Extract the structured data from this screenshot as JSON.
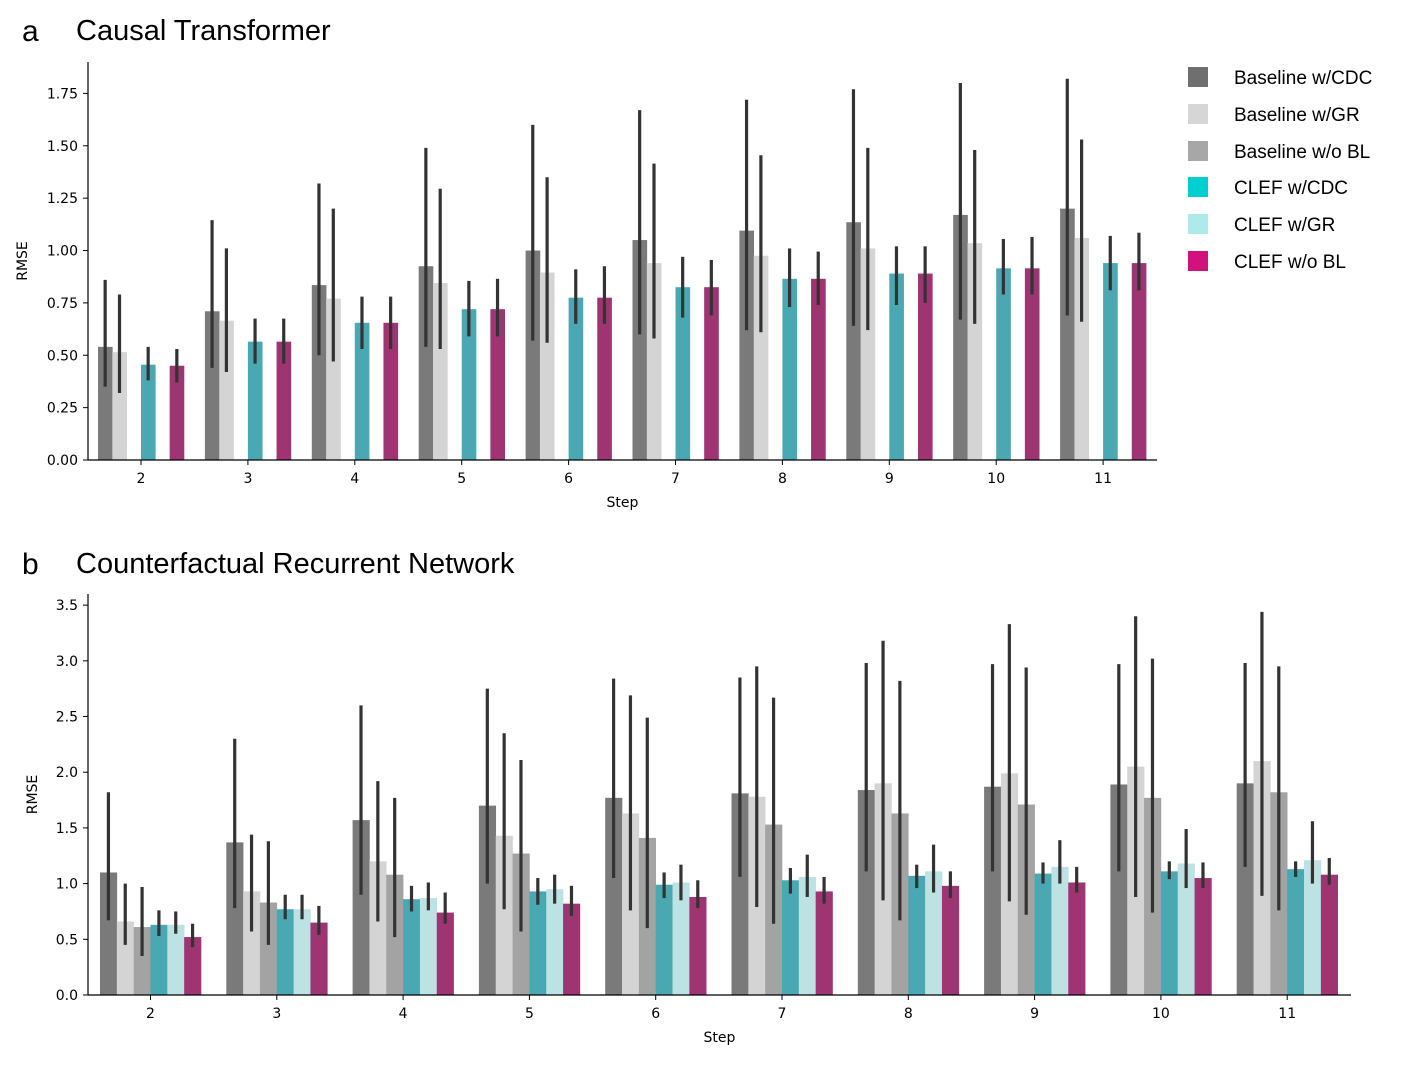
{
  "legend": {
    "items": [
      {
        "label": "Baseline w/CDC",
        "color": "#6f6f6f"
      },
      {
        "label": "Baseline w/GR",
        "color": "#d6d6d6"
      },
      {
        "label": "Baseline w/o BL",
        "color": "#a7a7a7"
      },
      {
        "label": "CLEF w/CDC",
        "color": "#00cfd0"
      },
      {
        "label": "CLEF w/GR",
        "color": "#aeeaea"
      },
      {
        "label": "CLEF w/o BL",
        "color": "#d2127c"
      }
    ]
  },
  "bar_colors": [
    "#7a7a7a",
    "#d4d4d4",
    "#a3a3a3",
    "#49a8b2",
    "#bde2e4",
    "#9e3472"
  ],
  "chart_data": [
    {
      "type": "bar",
      "panel": "a",
      "title": "Causal Transformer",
      "xlabel": "Step",
      "ylabel": "RMSE",
      "ylim": [
        0,
        1.9
      ],
      "yticks": [
        "0.00",
        "0.25",
        "0.50",
        "0.75",
        "1.00",
        "1.25",
        "1.50",
        "1.75"
      ],
      "categories": [
        "2",
        "3",
        "4",
        "5",
        "6",
        "7",
        "8",
        "9",
        "10",
        "11"
      ],
      "series": [
        {
          "name": "Baseline w/CDC",
          "values": [
            0.54,
            0.71,
            0.835,
            0.925,
            1.0,
            1.05,
            1.095,
            1.135,
            1.17,
            1.2
          ],
          "err_low": [
            0.35,
            0.44,
            0.5,
            0.54,
            0.57,
            0.6,
            0.62,
            0.64,
            0.67,
            0.69
          ],
          "err_high": [
            0.86,
            1.145,
            1.32,
            1.49,
            1.6,
            1.67,
            1.72,
            1.77,
            1.8,
            1.82
          ]
        },
        {
          "name": "Baseline w/GR",
          "values": [
            0.515,
            0.665,
            0.77,
            0.845,
            0.895,
            0.94,
            0.975,
            1.01,
            1.035,
            1.06
          ],
          "err_low": [
            0.32,
            0.42,
            0.47,
            0.53,
            0.56,
            0.58,
            0.61,
            0.62,
            0.65,
            0.66
          ],
          "err_high": [
            0.79,
            1.01,
            1.2,
            1.295,
            1.35,
            1.415,
            1.455,
            1.49,
            1.48,
            1.53
          ]
        },
        {
          "name": "Baseline w/o BL",
          "values": [
            null,
            null,
            null,
            null,
            null,
            null,
            null,
            null,
            null,
            null
          ],
          "err_low": [
            null,
            null,
            null,
            null,
            null,
            null,
            null,
            null,
            null,
            null
          ],
          "err_high": [
            null,
            null,
            null,
            null,
            null,
            null,
            null,
            null,
            null,
            null
          ]
        },
        {
          "name": "CLEF w/CDC",
          "values": [
            0.455,
            0.565,
            0.655,
            0.72,
            0.775,
            0.825,
            0.865,
            0.89,
            0.915,
            0.94
          ],
          "err_low": [
            0.38,
            0.46,
            0.53,
            0.59,
            0.65,
            0.68,
            0.73,
            0.74,
            0.79,
            0.81
          ],
          "err_high": [
            0.54,
            0.675,
            0.78,
            0.855,
            0.91,
            0.97,
            1.01,
            1.02,
            1.055,
            1.07
          ]
        },
        {
          "name": "CLEF w/GR",
          "values": [
            null,
            null,
            null,
            null,
            null,
            null,
            null,
            null,
            null,
            null
          ],
          "err_low": [
            null,
            null,
            null,
            null,
            null,
            null,
            null,
            null,
            null,
            null
          ],
          "err_high": [
            null,
            null,
            null,
            null,
            null,
            null,
            null,
            null,
            null,
            null
          ]
        },
        {
          "name": "CLEF w/o BL",
          "values": [
            0.45,
            0.565,
            0.655,
            0.72,
            0.775,
            0.825,
            0.865,
            0.89,
            0.915,
            0.94
          ],
          "err_low": [
            0.37,
            0.46,
            0.53,
            0.59,
            0.65,
            0.69,
            0.74,
            0.75,
            0.79,
            0.81
          ],
          "err_high": [
            0.53,
            0.675,
            0.78,
            0.865,
            0.925,
            0.955,
            0.995,
            1.02,
            1.065,
            1.085
          ]
        }
      ]
    },
    {
      "type": "bar",
      "panel": "b",
      "title": "Counterfactual Recurrent Network",
      "xlabel": "Step",
      "ylabel": "RMSE",
      "ylim": [
        0,
        3.6
      ],
      "yticks": [
        "0.0",
        "0.5",
        "1.0",
        "1.5",
        "2.0",
        "2.5",
        "3.0",
        "3.5"
      ],
      "categories": [
        "2",
        "3",
        "4",
        "5",
        "6",
        "7",
        "8",
        "9",
        "10",
        "11"
      ],
      "series": [
        {
          "name": "Baseline w/CDC",
          "values": [
            1.1,
            1.37,
            1.57,
            1.7,
            1.77,
            1.81,
            1.84,
            1.87,
            1.89,
            1.9
          ],
          "err_low": [
            0.67,
            0.78,
            0.9,
            1.0,
            1.05,
            1.06,
            1.11,
            1.11,
            1.11,
            1.15
          ],
          "err_high": [
            1.82,
            2.3,
            2.6,
            2.75,
            2.84,
            2.85,
            2.98,
            2.97,
            2.97,
            2.98
          ]
        },
        {
          "name": "Baseline w/GR",
          "values": [
            0.66,
            0.93,
            1.2,
            1.43,
            1.63,
            1.78,
            1.9,
            1.99,
            2.05,
            2.1
          ],
          "err_low": [
            0.45,
            0.57,
            0.66,
            0.77,
            0.76,
            0.79,
            0.85,
            0.84,
            0.88,
            0.89
          ],
          "err_high": [
            1.0,
            1.44,
            1.92,
            2.35,
            2.69,
            2.95,
            3.18,
            3.33,
            3.4,
            3.44
          ]
        },
        {
          "name": "Baseline w/o BL",
          "values": [
            0.61,
            0.83,
            1.08,
            1.27,
            1.41,
            1.53,
            1.63,
            1.71,
            1.77,
            1.82
          ],
          "err_low": [
            0.35,
            0.45,
            0.52,
            0.57,
            0.6,
            0.64,
            0.67,
            0.72,
            0.74,
            0.76
          ],
          "err_high": [
            0.97,
            1.38,
            1.77,
            2.11,
            2.49,
            2.67,
            2.82,
            2.94,
            3.02,
            2.95
          ]
        },
        {
          "name": "CLEF w/CDC",
          "values": [
            0.63,
            0.77,
            0.86,
            0.93,
            0.99,
            1.03,
            1.07,
            1.09,
            1.11,
            1.13
          ],
          "err_low": [
            0.53,
            0.68,
            0.75,
            0.81,
            0.87,
            0.91,
            0.96,
            1.0,
            1.04,
            1.06
          ],
          "err_high": [
            0.76,
            0.9,
            0.98,
            1.05,
            1.1,
            1.14,
            1.17,
            1.19,
            1.2,
            1.2
          ]
        },
        {
          "name": "CLEF w/GR",
          "values": [
            0.63,
            0.77,
            0.87,
            0.95,
            1.01,
            1.06,
            1.11,
            1.15,
            1.18,
            1.21
          ],
          "err_low": [
            0.55,
            0.68,
            0.76,
            0.82,
            0.85,
            0.88,
            0.92,
            1.0,
            0.96,
            1.0
          ],
          "err_high": [
            0.75,
            0.9,
            1.01,
            1.08,
            1.17,
            1.26,
            1.35,
            1.39,
            1.49,
            1.56
          ]
        },
        {
          "name": "CLEF w/o BL",
          "values": [
            0.52,
            0.65,
            0.74,
            0.82,
            0.88,
            0.93,
            0.98,
            1.01,
            1.05,
            1.08
          ],
          "err_low": [
            0.43,
            0.54,
            0.64,
            0.71,
            0.78,
            0.82,
            0.87,
            0.92,
            0.96,
            0.99
          ],
          "err_high": [
            0.64,
            0.8,
            0.92,
            0.98,
            1.03,
            1.06,
            1.11,
            1.15,
            1.19,
            1.23
          ]
        }
      ]
    }
  ]
}
